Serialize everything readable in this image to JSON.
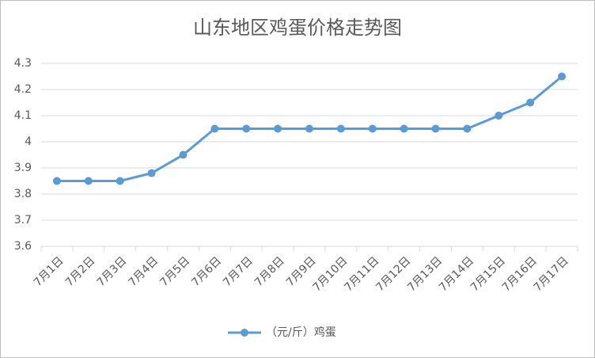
{
  "chart_data": {
    "type": "line",
    "title": "山东地区鸡蛋价格走势图",
    "categories": [
      "7月1日",
      "7月2日",
      "7月3日",
      "7月4日",
      "7月5日",
      "7月6日",
      "7月7日",
      "7月8日",
      "7月9日",
      "7月10日",
      "7月11日",
      "7月12日",
      "7月13日",
      "7月14日",
      "7月15日",
      "7月16日",
      "7月17日"
    ],
    "series": [
      {
        "name": "（元/斤）鸡蛋",
        "color": "#5b9bd5",
        "values": [
          3.85,
          3.85,
          3.85,
          3.88,
          3.95,
          4.05,
          4.05,
          4.05,
          4.05,
          4.05,
          4.05,
          4.05,
          4.05,
          4.05,
          4.1,
          4.15,
          4.25
        ]
      }
    ],
    "ylim": [
      3.6,
      4.3
    ],
    "yticks": [
      3.6,
      3.7,
      3.8,
      3.9,
      4,
      4.1,
      4.2,
      4.3
    ],
    "grid": true,
    "legend": "bottom"
  }
}
